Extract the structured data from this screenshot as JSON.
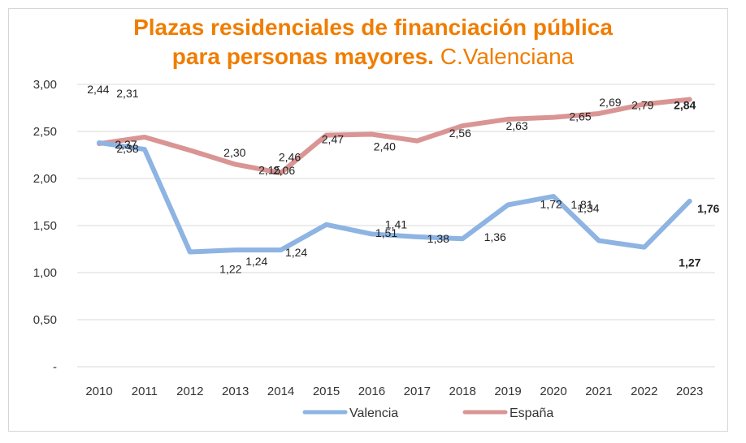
{
  "title_line1": "Plazas residenciales de financiación pública",
  "title_line2_bold": "para personas mayores.",
  "title_line2_light": "C.Valenciana",
  "chart_data": {
    "type": "line",
    "title": "Plazas residenciales de financiación pública para personas mayores. C.Valenciana",
    "xlabel": "",
    "ylabel": "",
    "categories": [
      "2010",
      "2011",
      "2012",
      "2013",
      "2014",
      "2015",
      "2016",
      "2017",
      "2018",
      "2019",
      "2020",
      "2021",
      "2022",
      "2023"
    ],
    "ylim": [
      0,
      3
    ],
    "yticks": [
      0,
      0.5,
      1,
      1.5,
      2,
      2.5,
      3
    ],
    "ytick_labels": [
      "-",
      "0,50",
      "1,00",
      "1,50",
      "2,00",
      "2,50",
      "3,00"
    ],
    "grid": true,
    "legend": "bottom",
    "series": [
      {
        "name": "Valencia",
        "color": "#8db4e2",
        "values": [
          2.38,
          2.31,
          1.22,
          1.24,
          1.24,
          1.51,
          1.41,
          1.38,
          1.36,
          1.72,
          1.81,
          1.34,
          1.27,
          1.76
        ],
        "labels": [
          "2,38",
          "2,31",
          "1,22",
          "1,24",
          "1,24",
          "1,51",
          "1,41",
          "1,38",
          "1,36",
          "1,72",
          "1,81",
          "1,34",
          "1,27",
          "1,76"
        ]
      },
      {
        "name": "España",
        "color": "#d99594",
        "values": [
          2.37,
          2.44,
          2.3,
          2.15,
          2.06,
          2.46,
          2.47,
          2.4,
          2.56,
          2.63,
          2.65,
          2.69,
          2.79,
          2.84
        ],
        "labels": [
          "2,37",
          "2,44",
          "2,30",
          "2,15",
          "2,06",
          "2,46",
          "2,47",
          "2,40",
          "2,56",
          "2,63",
          "2,65",
          "2,69",
          "2,79",
          "2,84"
        ]
      }
    ],
    "highlight_colors": {
      "red": "#ff0000",
      "black": "#000000"
    }
  }
}
